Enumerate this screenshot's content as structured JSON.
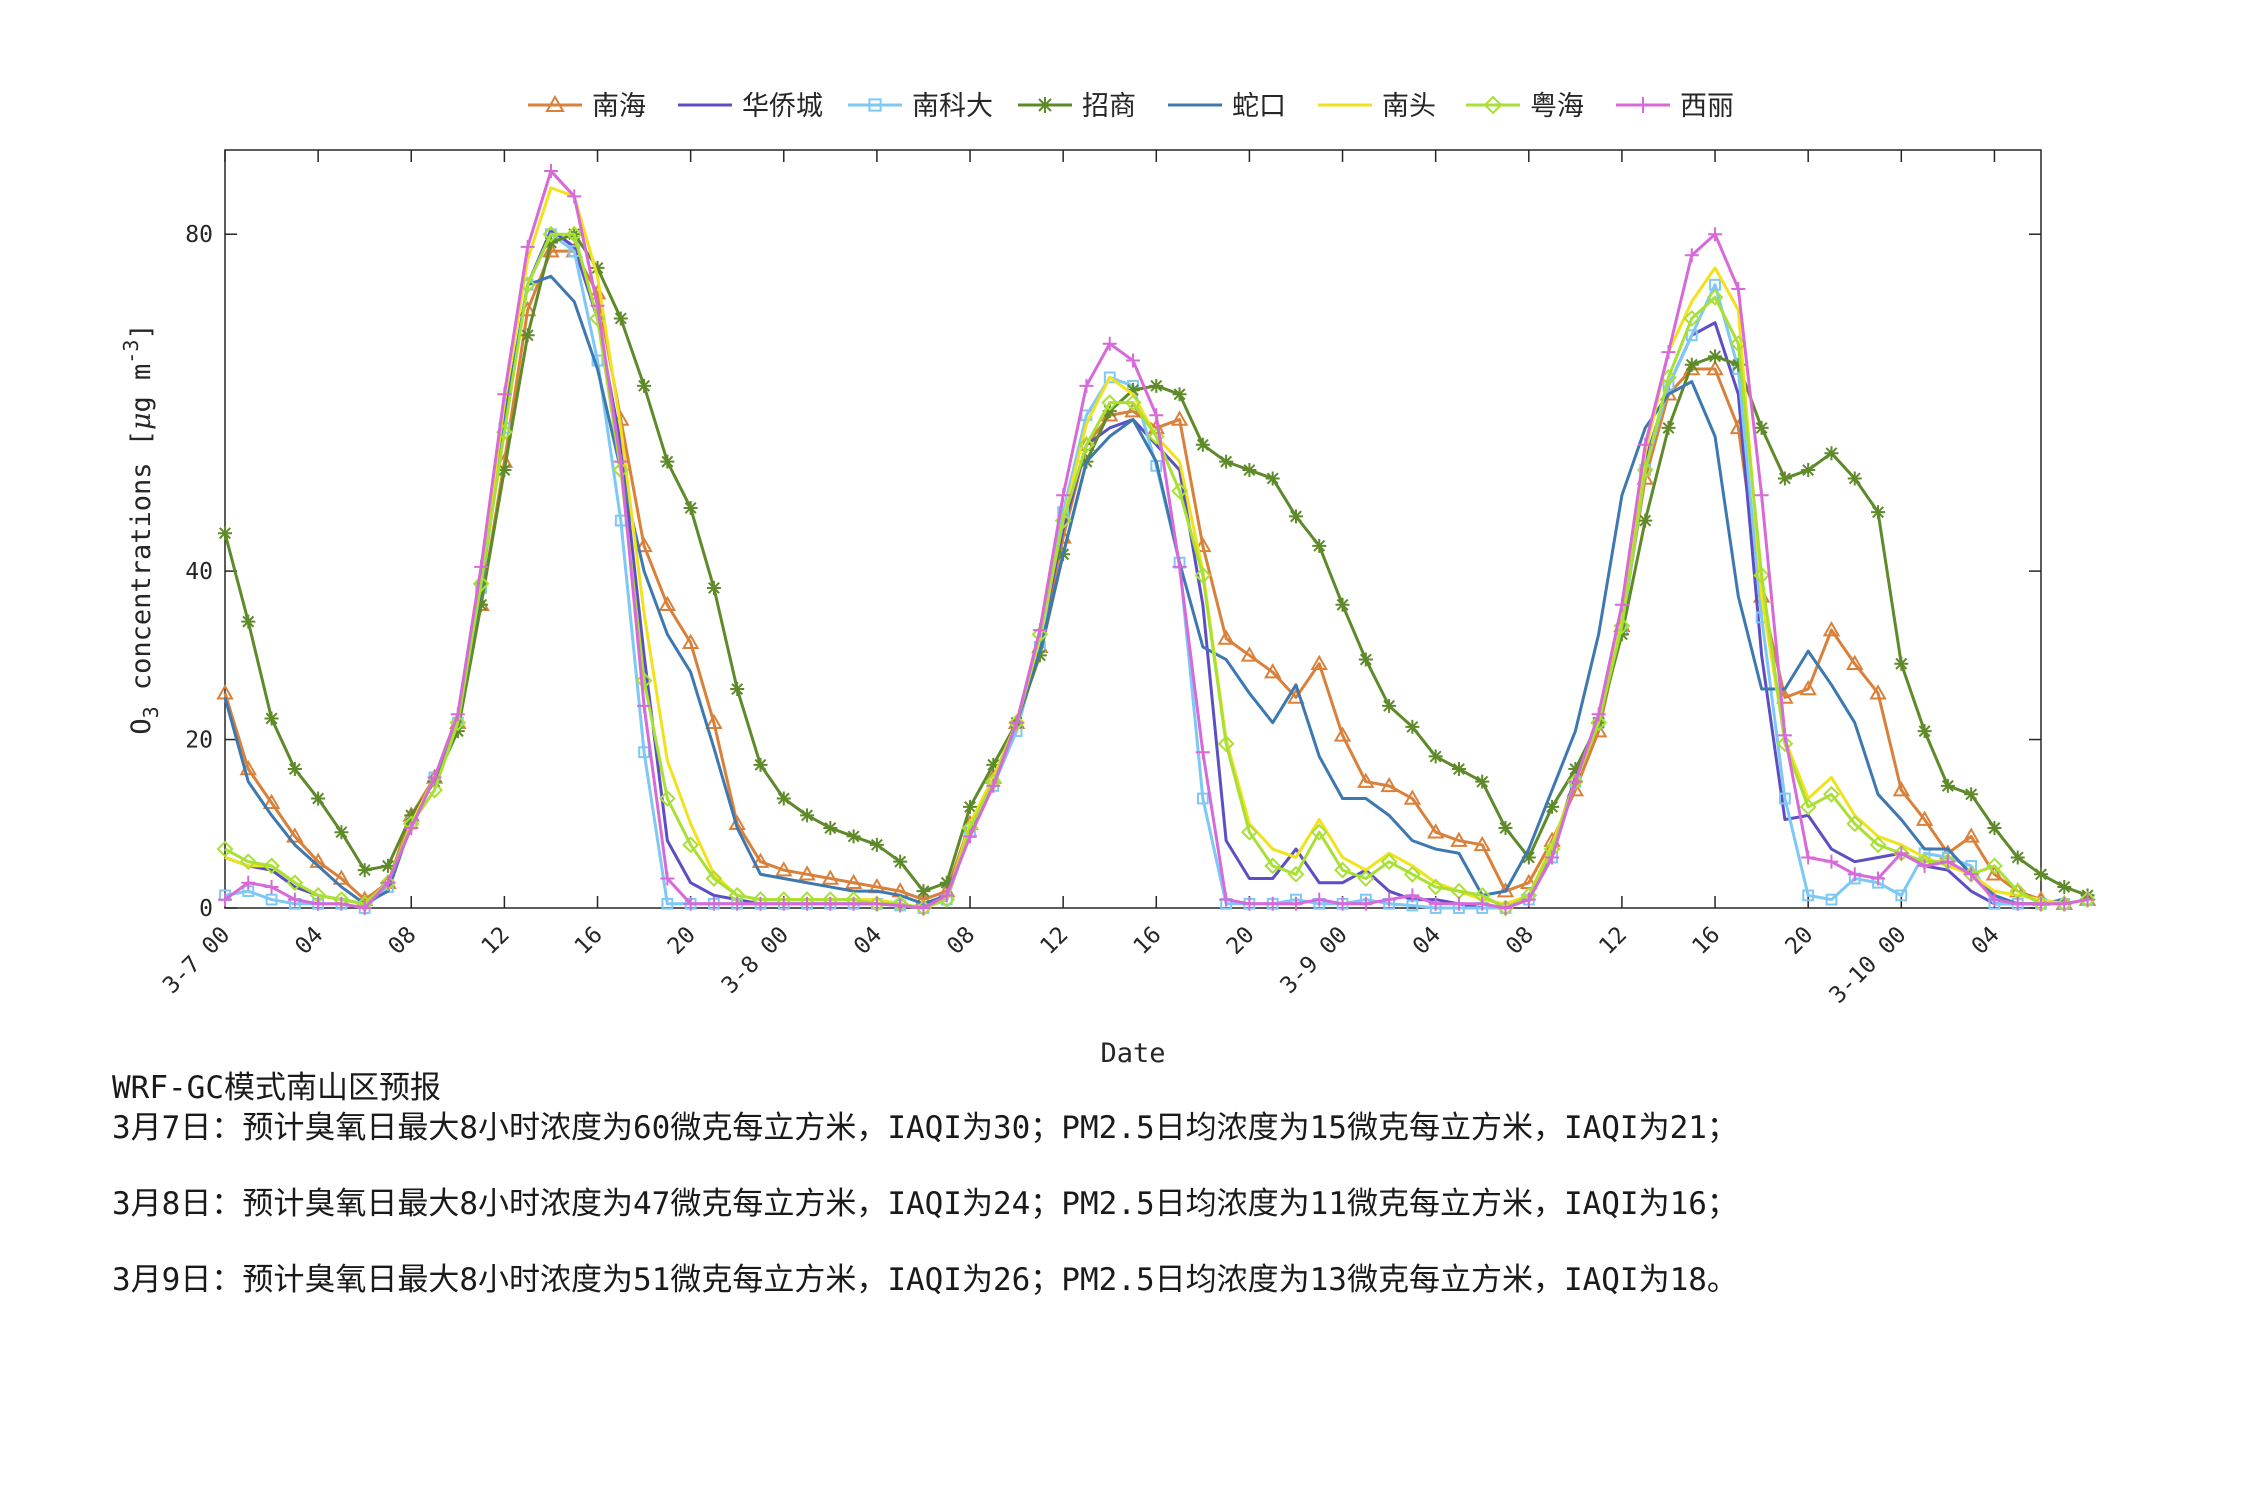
{
  "chart_data": {
    "type": "line",
    "title": "",
    "xlabel": "Date",
    "ylabel_main": "O",
    "ylabel_sub": "3",
    "ylabel_rest": " concentrations [",
    "ylabel_mu": "μ",
    "ylabel_unit": "g m",
    "ylabel_sup": "-3",
    "ylabel_close": "]",
    "x_hours_start": 0,
    "x_hours_end": 78,
    "ylim": [
      0,
      90
    ],
    "y_ticks": [
      0,
      20,
      40,
      80
    ],
    "x_ticks": [
      {
        "hour": 0,
        "label": "3-7 00"
      },
      {
        "hour": 4,
        "label": "04"
      },
      {
        "hour": 8,
        "label": "08"
      },
      {
        "hour": 12,
        "label": "12"
      },
      {
        "hour": 16,
        "label": "16"
      },
      {
        "hour": 20,
        "label": "20"
      },
      {
        "hour": 24,
        "label": "3-8 00"
      },
      {
        "hour": 28,
        "label": "04"
      },
      {
        "hour": 32,
        "label": "08"
      },
      {
        "hour": 36,
        "label": "12"
      },
      {
        "hour": 40,
        "label": "16"
      },
      {
        "hour": 44,
        "label": "20"
      },
      {
        "hour": 48,
        "label": "3-9 00"
      },
      {
        "hour": 52,
        "label": "04"
      },
      {
        "hour": 56,
        "label": "08"
      },
      {
        "hour": 60,
        "label": "12"
      },
      {
        "hour": 64,
        "label": "16"
      },
      {
        "hour": 68,
        "label": "20"
      },
      {
        "hour": 72,
        "label": "3-10 00"
      },
      {
        "hour": 76,
        "label": "04"
      }
    ],
    "grid": false,
    "legend_position": "top-center",
    "series": [
      {
        "name": "南海",
        "color": "#d9803a",
        "marker": "triangle",
        "values": [
          25.5,
          16.5,
          12.5,
          8.5,
          5.5,
          3.5,
          1,
          3,
          11,
          15.5,
          22,
          36,
          53,
          71,
          78,
          78,
          73,
          58,
          43,
          36,
          31.5,
          22,
          10,
          5.5,
          4.5,
          4,
          3.5,
          3,
          2.5,
          2,
          1,
          2,
          10,
          15.5,
          22,
          31,
          44,
          55,
          58.5,
          59,
          57,
          58,
          43,
          32,
          30,
          28,
          25,
          29,
          20.5,
          15,
          14.5,
          13,
          9,
          8,
          7.5,
          2,
          3,
          8,
          14,
          21,
          33.5,
          51,
          61,
          64,
          64,
          57,
          37,
          25,
          26,
          33,
          29,
          25.5,
          14,
          10.5,
          6.5,
          8.5,
          4,
          2,
          1,
          0.5,
          1
        ]
      },
      {
        "name": "华侨城",
        "color": "#5c4fc4",
        "marker": "none",
        "values": [
          6,
          5,
          4.5,
          2.5,
          1.5,
          1,
          0.5,
          2.5,
          10,
          15.5,
          22,
          38,
          58,
          74,
          80.5,
          78.5,
          70,
          55,
          30,
          8,
          3,
          1.5,
          1,
          0.5,
          0.5,
          0.5,
          0.5,
          0.5,
          0.5,
          0.3,
          0,
          1,
          9,
          15.5,
          22,
          31.5,
          45,
          55,
          57,
          58,
          55,
          52,
          36,
          8,
          3.5,
          3.5,
          7,
          3,
          3,
          4.5,
          2,
          1,
          1,
          0.5,
          0,
          0,
          1,
          7,
          15.5,
          22,
          34,
          53,
          62,
          68,
          69.5,
          61,
          30,
          10.5,
          11,
          7,
          5.5,
          6,
          6.5,
          5,
          4.5,
          2,
          0.5,
          0.5,
          0.5,
          1
        ]
      },
      {
        "name": "南科大",
        "color": "#7ec8f5",
        "marker": "square",
        "values": [
          1.5,
          2,
          1,
          0.5,
          0.5,
          0.5,
          0,
          2.5,
          10,
          15.5,
          22,
          38,
          57,
          74,
          80,
          78,
          65,
          46,
          18.5,
          0.5,
          0.5,
          0.5,
          0.5,
          0.5,
          0.5,
          0.5,
          0.5,
          0.5,
          0.5,
          0.3,
          0,
          1,
          9,
          14.5,
          21,
          31,
          47,
          58.5,
          63,
          62,
          52.5,
          41,
          13,
          0.5,
          0.5,
          0.5,
          1,
          0.5,
          0.5,
          1,
          0.5,
          0.3,
          0,
          0,
          0,
          0,
          1,
          6,
          15,
          22,
          33,
          52,
          62,
          68,
          74,
          64,
          34.5,
          13,
          1.5,
          1,
          3.5,
          3,
          1.5,
          6.5,
          6,
          5,
          0.5,
          0.5,
          0.5,
          0.5,
          1
        ]
      },
      {
        "name": "招商",
        "color": "#5e8a2a",
        "marker": "star",
        "values": [
          44.5,
          34,
          22.5,
          16.5,
          13,
          9,
          4.5,
          5,
          11,
          15,
          21,
          36,
          52,
          68,
          79,
          80,
          76,
          70,
          62,
          53,
          47.5,
          38,
          26,
          17,
          13,
          11,
          9.5,
          8.5,
          7.5,
          5.5,
          2,
          3,
          12,
          17,
          22,
          30,
          42,
          53,
          59,
          61.5,
          62,
          61,
          55,
          53,
          52,
          51,
          46.5,
          43,
          36,
          29.5,
          24,
          21.5,
          18,
          16.5,
          15,
          9.5,
          6,
          12,
          16.5,
          22,
          32.5,
          46,
          57,
          64.5,
          65.5,
          64.5,
          57,
          51,
          52,
          54,
          51,
          47,
          29,
          21,
          14.5,
          13.5,
          9.5,
          6,
          4,
          2.5,
          1.5
        ]
      },
      {
        "name": "蛇口",
        "color": "#3d78b0",
        "marker": "none",
        "values": [
          25,
          15,
          11,
          7.5,
          5,
          2.5,
          0.5,
          2,
          10,
          15.5,
          22,
          38,
          58,
          74,
          75,
          72,
          64,
          52,
          40,
          32.5,
          28,
          19,
          9.5,
          4,
          3.5,
          3,
          2.5,
          2,
          2,
          1.5,
          0.5,
          1.5,
          9,
          15,
          22,
          30.5,
          42,
          53,
          56,
          58,
          53,
          41,
          31,
          29.5,
          25.5,
          22,
          26.5,
          18,
          13,
          13,
          11,
          8,
          7,
          6.5,
          1.5,
          2,
          7,
          14,
          21,
          32.5,
          49,
          57,
          61,
          62.5,
          56,
          37,
          26,
          26,
          30.5,
          26.5,
          22,
          13.5,
          10.5,
          7,
          7,
          4,
          1.5,
          0.5,
          0.5,
          1
        ]
      },
      {
        "name": "南头",
        "color": "#f2e21d",
        "marker": "none",
        "values": [
          6,
          5,
          5,
          3,
          1.5,
          1,
          0.5,
          3,
          10,
          15.5,
          23,
          39,
          60,
          77,
          85.5,
          84.5,
          75,
          57,
          35,
          17.5,
          10,
          4,
          1.5,
          1,
          1,
          1,
          1,
          1,
          1,
          0.5,
          0,
          1,
          10,
          15.5,
          22,
          32,
          46,
          57.5,
          63,
          61,
          56,
          53,
          40,
          20,
          10,
          7,
          6,
          10.5,
          6,
          4.5,
          6.5,
          5,
          3,
          2,
          1,
          0.5,
          1.5,
          7.5,
          15,
          22,
          34,
          54,
          66,
          72,
          76,
          71,
          37,
          20,
          13,
          15.5,
          11,
          8.5,
          7.5,
          6,
          5,
          4,
          2,
          1.5,
          1,
          0.5,
          1
        ]
      },
      {
        "name": "粤海",
        "color": "#a8e034",
        "marker": "diamond",
        "values": [
          7,
          5.5,
          5,
          3,
          1.5,
          1,
          0.5,
          3,
          10,
          14,
          22,
          38.5,
          56.5,
          74,
          80,
          80,
          70,
          52,
          27,
          13,
          7.5,
          3.5,
          1.5,
          1,
          1,
          1,
          1,
          1,
          0.5,
          0.5,
          0,
          1,
          9.5,
          15,
          22,
          32.5,
          46,
          55,
          60,
          60,
          56,
          49.5,
          39.5,
          19.5,
          9,
          5,
          4,
          9,
          4.5,
          3.5,
          5.5,
          4,
          2.5,
          2,
          1.5,
          0,
          1.5,
          7,
          15,
          22,
          33.5,
          52,
          63,
          70,
          72.5,
          67,
          39.5,
          19.5,
          12,
          13.5,
          10,
          7.5,
          6.5,
          5.5,
          5.5,
          4,
          5,
          2,
          0.5,
          0.5,
          1
        ]
      },
      {
        "name": "西丽",
        "color": "#d769d8",
        "marker": "plus",
        "values": [
          1,
          3,
          2.5,
          1,
          0.5,
          0.5,
          0,
          3,
          9.5,
          15.5,
          23,
          40.5,
          61,
          78.5,
          87.5,
          84.5,
          71.5,
          53,
          24,
          3.5,
          0.5,
          0.5,
          0.5,
          0.5,
          0.5,
          0.5,
          0.5,
          0.5,
          0.5,
          0.3,
          0,
          1.5,
          8.5,
          14.5,
          22,
          33,
          49,
          62,
          67,
          65,
          58.5,
          40.5,
          18.5,
          1,
          0.5,
          0.5,
          0.5,
          1,
          0.5,
          0.5,
          1,
          1.5,
          0.5,
          0.5,
          0.5,
          0,
          1,
          6,
          15,
          23,
          36,
          55,
          66,
          77.5,
          80,
          73.5,
          49,
          20.5,
          6,
          5.5,
          4,
          3.5,
          6.5,
          5,
          5.5,
          4,
          1,
          0.5,
          0.5,
          0.5,
          1
        ]
      }
    ]
  },
  "notes": {
    "title": "WRF-GC模式南山区预报",
    "lines": [
      "3月7日：预计臭氧日最大8小时浓度为60微克每立方米，IAQI为30；PM2.5日均浓度为15微克每立方米，IAQI为21；",
      "3月8日：预计臭氧日最大8小时浓度为47微克每立方米，IAQI为24；PM2.5日均浓度为11微克每立方米，IAQI为16；",
      "3月9日：预计臭氧日最大8小时浓度为51微克每立方米，IAQI为26；PM2.5日均浓度为13微克每立方米，IAQI为18。"
    ]
  }
}
